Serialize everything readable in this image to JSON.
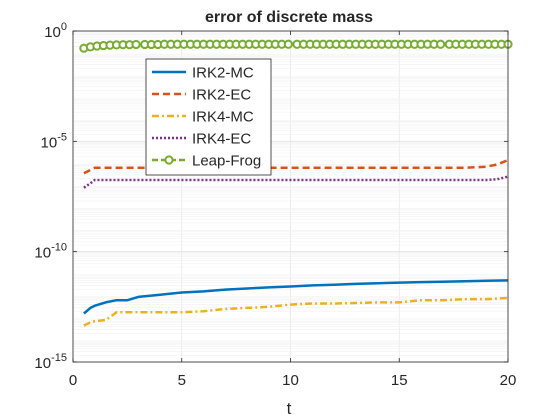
{
  "chart_data": {
    "type": "line",
    "title": "error of discrete mass",
    "xlabel": "t",
    "ylabel": "",
    "xlim": [
      0,
      20
    ],
    "ylim_log10": [
      -15,
      0
    ],
    "yscale": "log",
    "grid": true,
    "legend_placement": "top-left",
    "x_ticks": [
      {
        "value": 0,
        "label": "0"
      },
      {
        "value": 5,
        "label": "5"
      },
      {
        "value": 10,
        "label": "10"
      },
      {
        "value": 15,
        "label": "15"
      },
      {
        "value": 20,
        "label": "20"
      }
    ],
    "y_ticks": [
      {
        "exp": 0,
        "base": "10",
        "sup": "0"
      },
      {
        "exp": -5,
        "base": "10",
        "sup": "-5"
      },
      {
        "exp": -10,
        "base": "10",
        "sup": "-10"
      },
      {
        "exp": -15,
        "base": "10",
        "sup": "-15"
      }
    ],
    "series": [
      {
        "name": "IRK2-MC",
        "color": "#0072bd",
        "style": "solid",
        "x": [
          0.5,
          0.8,
          1,
          1.5,
          2,
          2.5,
          3,
          4,
          5,
          6,
          7,
          8,
          9,
          10,
          11,
          12,
          13,
          14,
          15,
          16,
          17,
          18,
          19,
          20
        ],
        "log10y": [
          -12.8,
          -12.55,
          -12.45,
          -12.3,
          -12.2,
          -12.2,
          -12.05,
          -11.95,
          -11.85,
          -11.8,
          -11.72,
          -11.67,
          -11.62,
          -11.58,
          -11.53,
          -11.5,
          -11.46,
          -11.43,
          -11.4,
          -11.38,
          -11.36,
          -11.34,
          -11.32,
          -11.3
        ]
      },
      {
        "name": "IRK2-EC",
        "color": "#d95319",
        "style": "dashed",
        "x": [
          0.5,
          0.8,
          1,
          2,
          5,
          10,
          15,
          18,
          19,
          19.5,
          20
        ],
        "log10y": [
          -6.45,
          -6.3,
          -6.2,
          -6.2,
          -6.2,
          -6.2,
          -6.2,
          -6.2,
          -6.15,
          -6.05,
          -5.85
        ]
      },
      {
        "name": "IRK4-MC",
        "color": "#edb120",
        "style": "dashdot",
        "x": [
          0.5,
          0.8,
          1,
          1.5,
          2,
          2.5,
          5,
          6,
          7,
          8,
          9,
          10,
          11,
          12,
          14,
          15,
          16,
          17,
          18,
          19,
          20
        ],
        "log10y": [
          -13.35,
          -13.2,
          -13.15,
          -13.1,
          -12.75,
          -12.75,
          -12.75,
          -12.7,
          -12.6,
          -12.55,
          -12.5,
          -12.4,
          -12.35,
          -12.35,
          -12.3,
          -12.3,
          -12.2,
          -12.2,
          -12.15,
          -12.15,
          -12.1
        ]
      },
      {
        "name": "IRK4-EC",
        "color": "#7e2f8e",
        "style": "dotted",
        "x": [
          0.5,
          0.8,
          1,
          2,
          5,
          10,
          15,
          18,
          19,
          19.5,
          20
        ],
        "log10y": [
          -7.1,
          -6.9,
          -6.75,
          -6.75,
          -6.75,
          -6.75,
          -6.75,
          -6.75,
          -6.75,
          -6.72,
          -6.6
        ]
      },
      {
        "name": "Leap-Frog",
        "color": "#77ac30",
        "style": "dashed-circle",
        "x": [
          0.5,
          0.8,
          1.1,
          1.4,
          1.7,
          2.0,
          2.3,
          2.6,
          2.9,
          3.3,
          3.6,
          3.9,
          4.2,
          4.5,
          4.8,
          5.1,
          5.4,
          5.7,
          6.0,
          6.3,
          6.6,
          6.9,
          7.2,
          7.5,
          7.8,
          8.1,
          8.4,
          8.7,
          9.0,
          9.3,
          9.6,
          9.9,
          10.3,
          10.6,
          10.9,
          11.2,
          11.5,
          11.8,
          12.1,
          12.4,
          12.7,
          13.0,
          13.3,
          13.6,
          13.9,
          14.2,
          14.5,
          14.8,
          15.1,
          15.4,
          15.7,
          16.0,
          16.3,
          16.6,
          16.9,
          17.3,
          17.6,
          17.9,
          18.2,
          18.5,
          18.8,
          19.1,
          19.4,
          19.7,
          20.0
        ],
        "log10y": [
          -0.78,
          -0.72,
          -0.68,
          -0.66,
          -0.64,
          -0.63,
          -0.62,
          -0.62,
          -0.61,
          -0.61,
          -0.61,
          -0.61,
          -0.6,
          -0.6,
          -0.6,
          -0.6,
          -0.6,
          -0.6,
          -0.6,
          -0.6,
          -0.6,
          -0.6,
          -0.6,
          -0.6,
          -0.6,
          -0.6,
          -0.6,
          -0.6,
          -0.6,
          -0.6,
          -0.6,
          -0.6,
          -0.6,
          -0.6,
          -0.6,
          -0.6,
          -0.6,
          -0.6,
          -0.6,
          -0.6,
          -0.6,
          -0.6,
          -0.6,
          -0.6,
          -0.6,
          -0.6,
          -0.6,
          -0.6,
          -0.6,
          -0.6,
          -0.6,
          -0.6,
          -0.6,
          -0.6,
          -0.6,
          -0.6,
          -0.6,
          -0.6,
          -0.6,
          -0.6,
          -0.6,
          -0.6,
          -0.6,
          -0.6,
          -0.6
        ]
      }
    ]
  }
}
